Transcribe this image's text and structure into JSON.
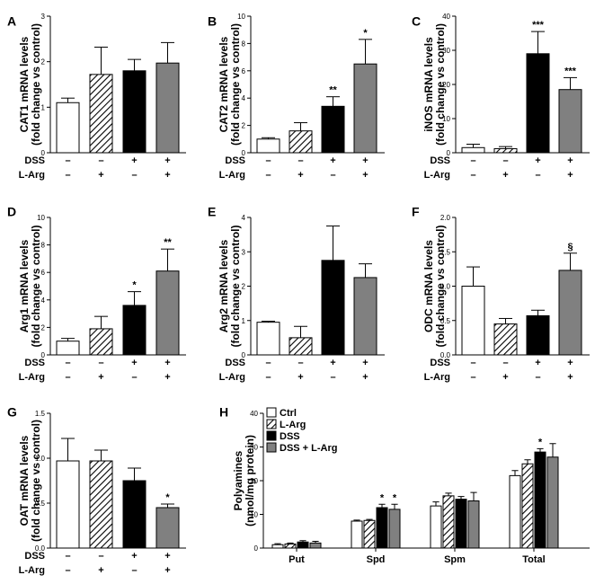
{
  "conditions": {
    "rows": [
      {
        "label": "DSS",
        "signs": [
          "–",
          "–",
          "+",
          "+"
        ]
      },
      {
        "label": "L-Arg",
        "signs": [
          "–",
          "+",
          "–",
          "+"
        ]
      }
    ]
  },
  "styles": {
    "fills": [
      "#ffffff",
      "hatch",
      "#000000",
      "#808080"
    ],
    "stroke": "#000000"
  },
  "chart_data": [
    {
      "panel": "A",
      "type": "bar",
      "ylabel": [
        "CAT1 mRNA levels",
        "(fold change vs control)"
      ],
      "ylim": [
        0,
        3
      ],
      "yticks": [
        "0",
        "1",
        "2",
        "3"
      ],
      "values": [
        1.1,
        1.72,
        1.8,
        1.97
      ],
      "errors": [
        0.1,
        0.6,
        0.25,
        0.45
      ],
      "sig": [
        "",
        "",
        "",
        ""
      ]
    },
    {
      "panel": "B",
      "type": "bar",
      "ylabel": [
        "CAT2 mRNA levels",
        "(fold change vs control)"
      ],
      "ylim": [
        0,
        10
      ],
      "yticks": [
        "0",
        "2",
        "4",
        "6",
        "8",
        "10"
      ],
      "values": [
        1.0,
        1.6,
        3.4,
        6.5
      ],
      "errors": [
        0.1,
        0.6,
        0.7,
        1.8
      ],
      "sig": [
        "",
        "",
        "**",
        "*"
      ]
    },
    {
      "panel": "C",
      "type": "bar",
      "ylabel": [
        "iNOS mRNA levels",
        "(fold change vs control)"
      ],
      "ylim": [
        0,
        40
      ],
      "yticks": [
        "0",
        "10",
        "20",
        "30",
        "40"
      ],
      "values": [
        1.5,
        1.2,
        29,
        18.5
      ],
      "errors": [
        1.0,
        0.6,
        6.5,
        3.5
      ],
      "sig": [
        "",
        "",
        "***",
        "***"
      ]
    },
    {
      "panel": "D",
      "type": "bar",
      "ylabel": [
        "Arg1 mRNA levels",
        "(fold change vs control)"
      ],
      "ylim": [
        0,
        10
      ],
      "yticks": [
        "0",
        "2",
        "4",
        "6",
        "8",
        "10"
      ],
      "values": [
        1.0,
        1.9,
        3.6,
        6.1
      ],
      "errors": [
        0.2,
        0.9,
        1.0,
        1.6
      ],
      "sig": [
        "",
        "",
        "*",
        "**"
      ]
    },
    {
      "panel": "E",
      "type": "bar",
      "ylabel": [
        "Arg2 mRNA levels",
        "(fold change vs control)"
      ],
      "ylim": [
        0,
        4
      ],
      "yticks": [
        "0",
        "1",
        "2",
        "3",
        "4"
      ],
      "values": [
        0.95,
        0.5,
        2.75,
        2.25
      ],
      "errors": [
        0.03,
        0.33,
        1.0,
        0.4
      ],
      "sig": [
        "",
        "",
        "",
        ""
      ]
    },
    {
      "panel": "F",
      "type": "bar",
      "ylabel": [
        "ODC mRNA levels",
        "(fold change vs control)"
      ],
      "ylim": [
        0,
        2.0
      ],
      "yticks": [
        "0.0",
        "0.5",
        "1.0",
        "1.5",
        "2.0"
      ],
      "values": [
        1.0,
        0.45,
        0.57,
        1.23
      ],
      "errors": [
        0.28,
        0.08,
        0.08,
        0.25
      ],
      "sig": [
        "",
        "",
        "",
        "§"
      ]
    },
    {
      "panel": "G",
      "type": "bar",
      "ylabel": [
        "OAT mRNA levels",
        "(fold change vs control)"
      ],
      "ylim": [
        0,
        1.5
      ],
      "yticks": [
        "0.0",
        "0.5",
        "1.0",
        "1.5"
      ],
      "values": [
        0.97,
        0.97,
        0.75,
        0.45
      ],
      "errors": [
        0.25,
        0.12,
        0.14,
        0.04
      ],
      "sig": [
        "",
        "",
        "",
        "*"
      ]
    },
    {
      "panel": "H",
      "type": "bar",
      "ylabel": [
        "Polyamines",
        "(nmol/mg protein)"
      ],
      "ylim": [
        0,
        40
      ],
      "yticks": [
        "0",
        "10",
        "20",
        "30",
        "40"
      ],
      "categories": [
        "Put",
        "Spd",
        "Spm",
        "Total"
      ],
      "series": [
        {
          "name": "Ctrl",
          "values": [
            1.0,
            8.0,
            12.5,
            21.5
          ],
          "errors": [
            0.3,
            0.3,
            1.2,
            1.5
          ]
        },
        {
          "name": "L-Arg",
          "values": [
            1.2,
            8.2,
            15.5,
            25.0
          ],
          "errors": [
            0.3,
            0.3,
            0.8,
            1.2
          ]
        },
        {
          "name": "DSS",
          "values": [
            1.8,
            12.0,
            14.5,
            28.5
          ],
          "errors": [
            0.4,
            1.0,
            0.8,
            1.0
          ]
        },
        {
          "name": "DSS + L-Arg",
          "values": [
            1.5,
            11.5,
            14.0,
            27.0
          ],
          "errors": [
            0.5,
            1.5,
            2.5,
            4.0
          ]
        }
      ],
      "sig": [
        [
          "",
          "",
          "",
          ""
        ],
        [
          "",
          "",
          "*",
          "*"
        ],
        [
          "",
          "",
          "",
          ""
        ],
        [
          "",
          "",
          "*",
          ""
        ]
      ],
      "legend_position": "top-left"
    }
  ]
}
